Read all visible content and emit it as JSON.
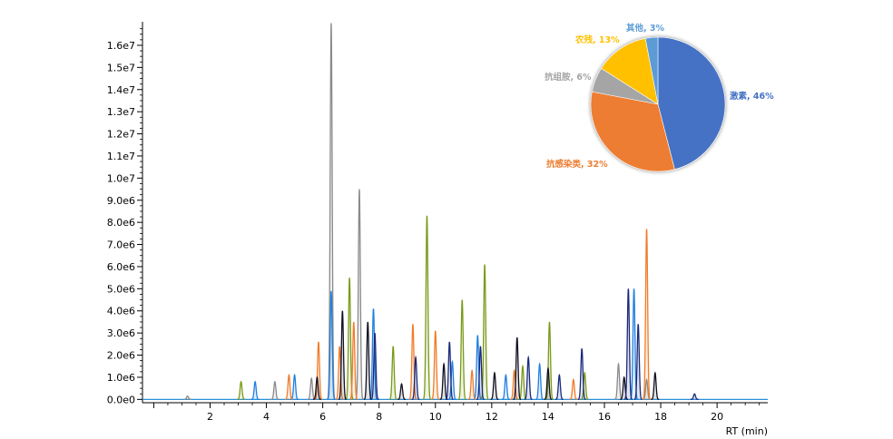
{
  "chart_data": [
    {
      "type": "line",
      "xlabel": "RT (min)",
      "ylabel": "",
      "xlim": [
        -0.4,
        21.8
      ],
      "ylim": [
        -150000.0,
        16900000.0
      ],
      "x_ticks": [
        2,
        4,
        6,
        8,
        10,
        12,
        14,
        16,
        18,
        20
      ],
      "x_tick_labels": [
        "2",
        "4",
        "6",
        "8",
        "10",
        "12",
        "14",
        "16",
        "18",
        "20"
      ],
      "y_ticks": [
        0,
        1000000,
        2000000,
        3000000,
        4000000,
        5000000,
        6000000,
        7000000,
        8000000,
        9000000,
        10000000,
        11000000,
        12000000,
        13000000,
        14000000,
        15000000,
        16000000
      ],
      "y_tick_labels": [
        "0.0e0",
        "1.0e6",
        "2.0e6",
        "3.0e6",
        "4.0e6",
        "5.0e6",
        "6.0e6",
        "7.0e6",
        "8.0e6",
        "9.0e6",
        "1.0e7",
        "1.1e7",
        "1.2e7",
        "1.3e7",
        "1.4e7",
        "1.5e7",
        "1.6e7"
      ],
      "series": [
        {
          "color": "#8a8a8a",
          "peaks": [
            [
              1.2,
              150000
            ],
            [
              4.3,
              800000
            ],
            [
              5.6,
              950000
            ],
            [
              6.3,
              17000000
            ],
            [
              7.3,
              9500000
            ],
            [
              16.5,
              1600000
            ],
            [
              17.5,
              900000
            ]
          ]
        },
        {
          "color": "#7a9a1a",
          "peaks": [
            [
              3.1,
              800000
            ],
            [
              6.95,
              5500000
            ],
            [
              8.5,
              2400000
            ],
            [
              9.7,
              8300000
            ],
            [
              10.95,
              4500000
            ],
            [
              11.75,
              6100000
            ],
            [
              13.1,
              1500000
            ],
            [
              14.05,
              3500000
            ],
            [
              15.3,
              1200000
            ]
          ]
        },
        {
          "color": "#1f7fe0",
          "peaks": [
            [
              3.6,
              800000
            ],
            [
              5.0,
              1100000
            ],
            [
              6.3,
              4900000
            ],
            [
              7.8,
              4100000
            ],
            [
              10.6,
              1700000
            ],
            [
              11.5,
              2900000
            ],
            [
              12.5,
              1100000
            ],
            [
              13.7,
              1600000
            ],
            [
              17.05,
              5000000
            ]
          ]
        },
        {
          "color": "#f07c2a",
          "peaks": [
            [
              4.8,
              1100000
            ],
            [
              5.85,
              2600000
            ],
            [
              6.6,
              2400000
            ],
            [
              7.1,
              3500000
            ],
            [
              9.2,
              3400000
            ],
            [
              10.0,
              3100000
            ],
            [
              11.3,
              1300000
            ],
            [
              12.8,
              1300000
            ],
            [
              14.9,
              900000
            ],
            [
              17.5,
              7700000
            ]
          ]
        },
        {
          "color": "#111122",
          "peaks": [
            [
              5.8,
              1000000
            ],
            [
              6.7,
              4000000
            ],
            [
              7.6,
              3500000
            ],
            [
              8.8,
              700000
            ],
            [
              10.3,
              1600000
            ],
            [
              12.1,
              1200000
            ],
            [
              12.9,
              2800000
            ],
            [
              14.0,
              1400000
            ],
            [
              16.7,
              1000000
            ],
            [
              17.8,
              1200000
            ]
          ]
        },
        {
          "color": "#1a2a7a",
          "peaks": [
            [
              7.85,
              3000000
            ],
            [
              9.3,
              1900000
            ],
            [
              10.5,
              2600000
            ],
            [
              11.6,
              2400000
            ],
            [
              13.3,
              1900000
            ],
            [
              14.4,
              1100000
            ],
            [
              15.2,
              2300000
            ],
            [
              16.85,
              5000000
            ],
            [
              17.2,
              3400000
            ],
            [
              19.2,
              250000
            ]
          ]
        }
      ]
    },
    {
      "type": "pie",
      "slices": [
        {
          "label": "激素, 46%",
          "value": 46,
          "color": "#4472c4"
        },
        {
          "label": "抗感染类, 32%",
          "value": 32,
          "color": "#ed7d31"
        },
        {
          "label": "抗组胺, 6%",
          "value": 6,
          "color": "#a5a5a5"
        },
        {
          "label": "农残, 13%",
          "value": 13,
          "color": "#ffc000"
        },
        {
          "label": "其他, 3%",
          "value": 3,
          "color": "#5b9bd5"
        }
      ],
      "label_colors": [
        "#4472c4",
        "#ed7d31",
        "#a5a5a5",
        "#ffc000",
        "#5b9bd5"
      ]
    }
  ]
}
